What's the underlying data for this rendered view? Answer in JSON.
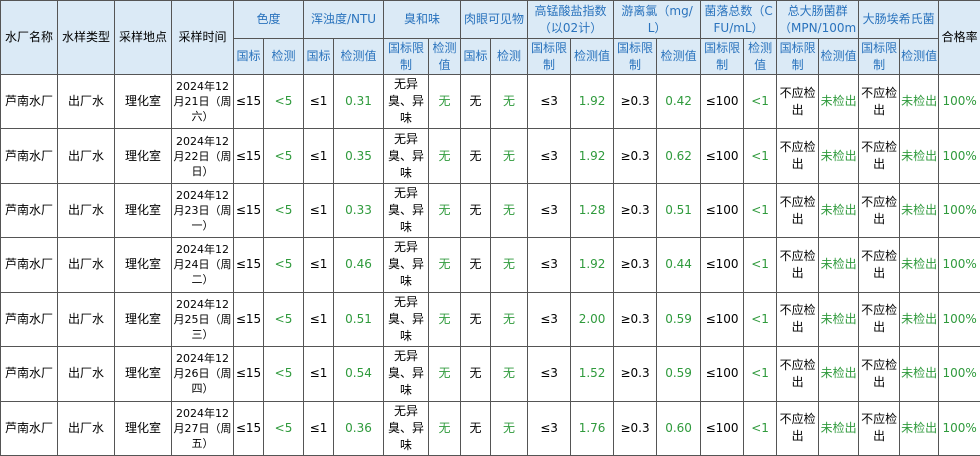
{
  "header": {
    "left": [
      "水厂名称",
      "水样类型",
      "采样地点",
      "采样时间"
    ],
    "groups": [
      {
        "title": "色度",
        "sub": [
          "国标",
          "检测"
        ]
      },
      {
        "title": "浑浊度/NTU",
        "sub": [
          "国标",
          "检测值"
        ]
      },
      {
        "title": "臭和味",
        "sub": [
          "国标限制",
          "检测值"
        ]
      },
      {
        "title": "肉眼可见物",
        "sub": [
          "国标",
          "检测"
        ]
      },
      {
        "title": "高锰酸盐指数（以02计）",
        "sub": [
          "国标限制",
          "检测值"
        ]
      },
      {
        "title": "游离氯（mg/L）",
        "sub": [
          "国标限制",
          "检测值"
        ]
      },
      {
        "title": "菌落总数（CFU/mL）",
        "sub": [
          "国标限制",
          "检测值"
        ]
      },
      {
        "title": "总大肠菌群（MPN/100m",
        "sub": [
          "国标限制",
          "检测值"
        ]
      },
      {
        "title": "大肠埃希氏菌",
        "sub": [
          "国标限制",
          "检测值"
        ]
      }
    ],
    "pass": "合格率"
  },
  "rows": [
    [
      "芦南水厂",
      "出厂水",
      "理化室",
      "2024年12月21日（周六）",
      "≤15",
      "<5",
      "≤1",
      "0.31",
      "无异臭、异味",
      "无",
      "无",
      "无",
      "≤3",
      "1.92",
      "≥0.3",
      "0.42",
      "≤100",
      "<1",
      "不应检出",
      "未检出",
      "不应检出",
      "未检出",
      "100%"
    ],
    [
      "芦南水厂",
      "出厂水",
      "理化室",
      "2024年12月22日（周日）",
      "≤15",
      "<5",
      "≤1",
      "0.35",
      "无异臭、异味",
      "无",
      "无",
      "无",
      "≤3",
      "1.92",
      "≥0.3",
      "0.62",
      "≤100",
      "<1",
      "不应检出",
      "未检出",
      "不应检出",
      "未检出",
      "100%"
    ],
    [
      "芦南水厂",
      "出厂水",
      "理化室",
      "2024年12月23日（周一）",
      "≤15",
      "<5",
      "≤1",
      "0.33",
      "无异臭、异味",
      "无",
      "无",
      "无",
      "≤3",
      "1.28",
      "≥0.3",
      "0.51",
      "≤100",
      "<1",
      "不应检出",
      "未检出",
      "不应检出",
      "未检出",
      "100%"
    ],
    [
      "芦南水厂",
      "出厂水",
      "理化室",
      "2024年12月24日（周二）",
      "≤15",
      "<5",
      "≤1",
      "0.46",
      "无异臭、异味",
      "无",
      "无",
      "无",
      "≤3",
      "1.92",
      "≥0.3",
      "0.44",
      "≤100",
      "<1",
      "不应检出",
      "未检出",
      "不应检出",
      "未检出",
      "100%"
    ],
    [
      "芦南水厂",
      "出厂水",
      "理化室",
      "2024年12月25日（周三）",
      "≤15",
      "<5",
      "≤1",
      "0.51",
      "无异臭、异味",
      "无",
      "无",
      "无",
      "≤3",
      "2.00",
      "≥0.3",
      "0.59",
      "≤100",
      "<1",
      "不应检出",
      "未检出",
      "不应检出",
      "未检出",
      "100%"
    ],
    [
      "芦南水厂",
      "出厂水",
      "理化室",
      "2024年12月26日（周四）",
      "≤15",
      "<5",
      "≤1",
      "0.54",
      "无异臭、异味",
      "无",
      "无",
      "无",
      "≤3",
      "1.52",
      "≥0.3",
      "0.59",
      "≤100",
      "<1",
      "不应检出",
      "未检出",
      "不应检出",
      "未检出",
      "100%"
    ],
    [
      "芦南水厂",
      "出厂水",
      "理化室",
      "2024年12月27日（周五）",
      "≤15",
      "<5",
      "≤1",
      "0.36",
      "无异臭、异味",
      "无",
      "无",
      "无",
      "≤3",
      "1.76",
      "≥0.3",
      "0.60",
      "≤100",
      "<1",
      "不应检出",
      "未检出",
      "不应检出",
      "未检出",
      "100%"
    ]
  ]
}
